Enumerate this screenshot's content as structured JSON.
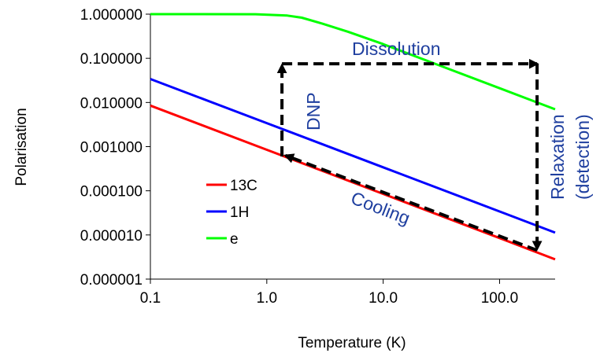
{
  "chart_data": {
    "type": "line",
    "x_scale": "log",
    "y_scale": "log",
    "xlabel": "Temperature (K)",
    "ylabel": "Polarisation",
    "xlim": [
      0.1,
      300
    ],
    "ylim": [
      1e-06,
      1
    ],
    "x_ticks": [
      {
        "value": 0.1,
        "label": "0.1"
      },
      {
        "value": 1,
        "label": "1.0"
      },
      {
        "value": 10,
        "label": "10.0"
      },
      {
        "value": 100,
        "label": "100.0"
      }
    ],
    "y_ticks": [
      {
        "value": 1e-06,
        "label": "0.000001"
      },
      {
        "value": 1e-05,
        "label": "0.000010"
      },
      {
        "value": 0.0001,
        "label": "0.000100"
      },
      {
        "value": 0.001,
        "label": "0.001000"
      },
      {
        "value": 0.01,
        "label": "0.010000"
      },
      {
        "value": 0.1,
        "label": "0.100000"
      },
      {
        "value": 1,
        "label": "1.000000"
      }
    ],
    "series": [
      {
        "name": "13C",
        "color": "#ff0000",
        "x": [
          0.1,
          1,
          10,
          100,
          300
        ],
        "y": [
          0.0085,
          0.00085,
          8.5e-05,
          8.5e-06,
          2.8e-06
        ]
      },
      {
        "name": "1H",
        "color": "#0000ff",
        "x": [
          0.1,
          1,
          10,
          100,
          300
        ],
        "y": [
          0.034,
          0.0034,
          0.00034,
          3.4e-05,
          1.13e-05
        ]
      },
      {
        "name": "e",
        "color": "#00ff00",
        "x": [
          0.1,
          0.8,
          1.5,
          2,
          3,
          5,
          10,
          30,
          100,
          200,
          300
        ],
        "y": [
          1,
          0.995,
          0.93,
          0.83,
          0.61,
          0.4,
          0.21,
          0.07,
          0.021,
          0.0105,
          0.007
        ]
      }
    ],
    "arrows": [
      {
        "label": "DNP",
        "from": [
          1.35,
          0.0006
        ],
        "to": [
          1.35,
          0.07
        ]
      },
      {
        "label": "Dissolution",
        "from": [
          1.35,
          0.075
        ],
        "to": [
          210,
          0.075
        ]
      },
      {
        "label": "Relaxation (detection)",
        "from": [
          210,
          0.075
        ],
        "to": [
          210,
          4.8e-06
        ]
      },
      {
        "label": "Cooling",
        "from": [
          210,
          4.5e-06
        ],
        "to": [
          1.45,
          0.00063
        ]
      }
    ],
    "annotations": {
      "dissolution": "Dissolution",
      "dnp": "DNP",
      "relaxation_line1": "Relaxation",
      "relaxation_line2": "(detection)",
      "cooling": "Cooling"
    },
    "annotation_color": "#1f3f9f",
    "legend_position": "lower-left"
  }
}
